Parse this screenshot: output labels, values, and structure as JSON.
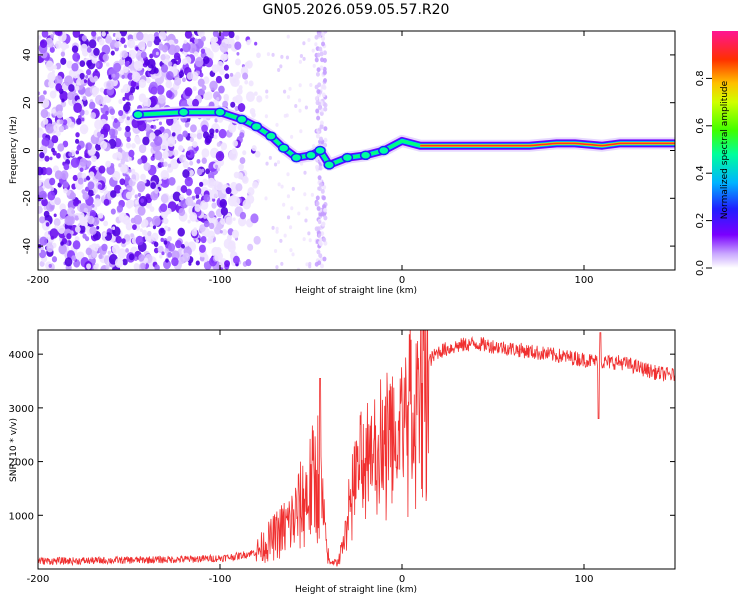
{
  "title": "GN05.2026.059.05.57.R20",
  "chart_data": [
    {
      "type": "heatmap",
      "xlabel": "Height of straight line (km)",
      "ylabel": "Frequency (Hz)",
      "xlim": [
        -200,
        150
      ],
      "ylim": [
        -50,
        50
      ],
      "x_ticks": [
        -200,
        -100,
        0,
        100
      ],
      "y_ticks": [
        -40,
        -20,
        0,
        20,
        40
      ],
      "colorbar": {
        "label": "Normalized spectral amplitude",
        "range": [
          0,
          1
        ],
        "ticks": [
          "0.0",
          "0.2",
          "0.4",
          "0.6",
          "0.8"
        ],
        "tick_values": [
          0.0,
          0.2,
          0.4,
          0.6,
          0.8
        ],
        "stops": [
          "#ffffff",
          "#8a2be2",
          "#3a10f0",
          "#00c8ff",
          "#00ff7f",
          "#80ff00",
          "#ffff00",
          "#ff8000",
          "#ff0000",
          "#ff1493"
        ]
      },
      "carrier_track": [
        {
          "x": -145,
          "y": 15
        },
        {
          "x": -120,
          "y": 16
        },
        {
          "x": -100,
          "y": 16
        },
        {
          "x": -88,
          "y": 13
        },
        {
          "x": -80,
          "y": 10
        },
        {
          "x": -72,
          "y": 6
        },
        {
          "x": -65,
          "y": 1
        },
        {
          "x": -58,
          "y": -3
        },
        {
          "x": -50,
          "y": -2
        },
        {
          "x": -45,
          "y": 0
        },
        {
          "x": -40,
          "y": -6
        },
        {
          "x": -30,
          "y": -3
        },
        {
          "x": -20,
          "y": -2
        },
        {
          "x": -10,
          "y": 0
        },
        {
          "x": 0,
          "y": 4
        },
        {
          "x": 10,
          "y": 2
        },
        {
          "x": 40,
          "y": 2
        },
        {
          "x": 70,
          "y": 2
        },
        {
          "x": 85,
          "y": 3
        },
        {
          "x": 95,
          "y": 3
        },
        {
          "x": 110,
          "y": 2
        },
        {
          "x": 120,
          "y": 3
        },
        {
          "x": 150,
          "y": 3
        }
      ]
    },
    {
      "type": "line",
      "xlabel": "Height of straight line (km)",
      "ylabel": "SNR (10 * v/v)",
      "xlim": [
        -200,
        150
      ],
      "ylim": [
        0,
        4450
      ],
      "x_ticks": [
        -200,
        -100,
        0,
        100
      ],
      "y_ticks": [
        1000,
        2000,
        3000,
        4000
      ],
      "series": [
        {
          "name": "SNR",
          "color": "#f03030",
          "x": [
            -200,
            -180,
            -160,
            -140,
            -120,
            -100,
            -90,
            -80,
            -70,
            -60,
            -55,
            -50,
            -46,
            -44,
            -42,
            -40,
            -35,
            -30,
            -28,
            -25,
            -20,
            -15,
            -10,
            -5,
            0,
            5,
            10,
            20,
            30,
            40,
            50,
            60,
            70,
            80,
            90,
            100,
            110,
            120,
            130,
            140,
            150
          ],
          "values": [
            150,
            150,
            160,
            170,
            180,
            200,
            240,
            320,
            600,
            900,
            1200,
            1500,
            1800,
            1300,
            500,
            150,
            120,
            1000,
            1600,
            1800,
            2300,
            2500,
            2600,
            2700,
            2900,
            3200,
            3700,
            4050,
            4150,
            4200,
            4150,
            4100,
            4050,
            4000,
            3950,
            3900,
            3850,
            3850,
            3750,
            3650,
            3600
          ]
        }
      ],
      "spikes": [
        {
          "x": -45,
          "value": 3550
        },
        {
          "x": 108,
          "value": 2800
        },
        {
          "x": 109,
          "value": 4400
        }
      ]
    }
  ]
}
